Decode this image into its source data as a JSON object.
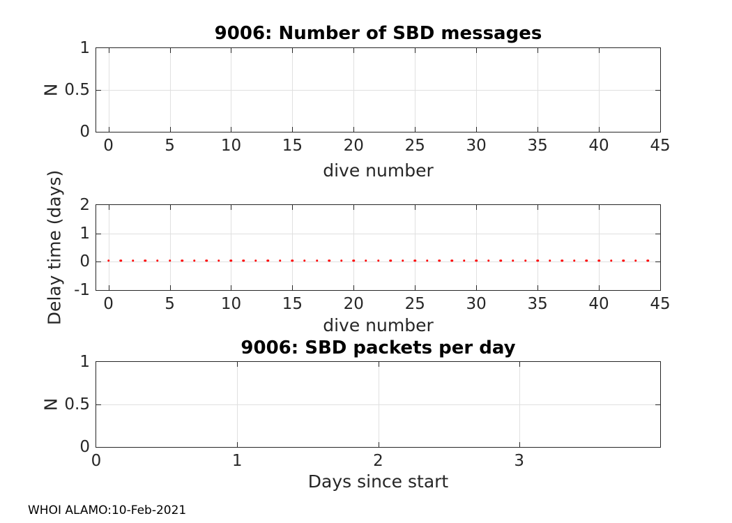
{
  "figure": {
    "footer": "WHOI ALAMO:10-Feb-2021"
  },
  "colors": {
    "background": "#ffffff",
    "axis": "#262626",
    "grid": "#e0e0e0",
    "tick_text": "#262626",
    "title_text": "#000000",
    "marker": "#ff0000"
  },
  "chart_data": [
    {
      "id": "sbd-messages",
      "type": "scatter",
      "title": "9006: Number of SBD messages",
      "xlabel": "dive number",
      "ylabel": "N",
      "xlim": [
        -1,
        45
      ],
      "ylim": [
        0,
        1
      ],
      "xticks": [
        0,
        5,
        10,
        15,
        20,
        25,
        30,
        35,
        40,
        45
      ],
      "xtick_labels": [
        "0",
        "5",
        "10",
        "15",
        "20",
        "25",
        "30",
        "35",
        "40",
        "45"
      ],
      "yticks": [
        0,
        0.5,
        1
      ],
      "ytick_labels": [
        "0",
        "0.5",
        "1"
      ],
      "grid": true,
      "series": []
    },
    {
      "id": "delay-time",
      "type": "scatter",
      "title": "",
      "xlabel": "dive number",
      "ylabel": "Delay time (days)",
      "xlim": [
        -1,
        45
      ],
      "ylim": [
        -1,
        2
      ],
      "xticks": [
        0,
        5,
        10,
        15,
        20,
        25,
        30,
        35,
        40,
        45
      ],
      "xtick_labels": [
        "0",
        "5",
        "10",
        "15",
        "20",
        "25",
        "30",
        "35",
        "40",
        "45"
      ],
      "yticks": [
        -1,
        0,
        1,
        2
      ],
      "ytick_labels": [
        "-1",
        "0",
        "1",
        "2"
      ],
      "grid": true,
      "series": [
        {
          "name": "delay",
          "marker": "dot",
          "color": "#ff0000",
          "x": [
            0,
            1,
            2,
            3,
            4,
            5,
            6,
            7,
            8,
            9,
            10,
            11,
            12,
            13,
            14,
            15,
            16,
            17,
            18,
            19,
            20,
            21,
            22,
            23,
            24,
            25,
            26,
            27,
            28,
            29,
            30,
            31,
            32,
            33,
            34,
            35,
            36,
            37,
            38,
            39,
            40,
            41,
            42,
            43,
            44
          ],
          "y": [
            0.04,
            0.04,
            0.04,
            0.04,
            0.04,
            0.04,
            0.04,
            0.04,
            0.04,
            0.04,
            0.04,
            0.04,
            0.04,
            0.04,
            0.04,
            0.04,
            0.04,
            0.04,
            0.04,
            0.04,
            0.04,
            0.04,
            0.04,
            0.04,
            0.04,
            0.04,
            0.04,
            0.04,
            0.04,
            0.04,
            0.04,
            0.04,
            0.04,
            0.04,
            0.04,
            0.04,
            0.04,
            0.04,
            0.04,
            0.04,
            0.04,
            0.04,
            0.04,
            0.04,
            0.04
          ]
        }
      ]
    },
    {
      "id": "packets-per-day",
      "type": "scatter",
      "title": "9006: SBD packets per day",
      "xlabel": "Days since start",
      "ylabel": "N",
      "xlim": [
        0,
        4
      ],
      "ylim": [
        0,
        1
      ],
      "xticks": [
        0,
        1,
        2,
        3
      ],
      "xtick_labels": [
        "0",
        "1",
        "2",
        "3"
      ],
      "yticks": [
        0,
        0.5,
        1
      ],
      "ytick_labels": [
        "0",
        "0.5",
        "1"
      ],
      "grid": true,
      "series": []
    }
  ]
}
